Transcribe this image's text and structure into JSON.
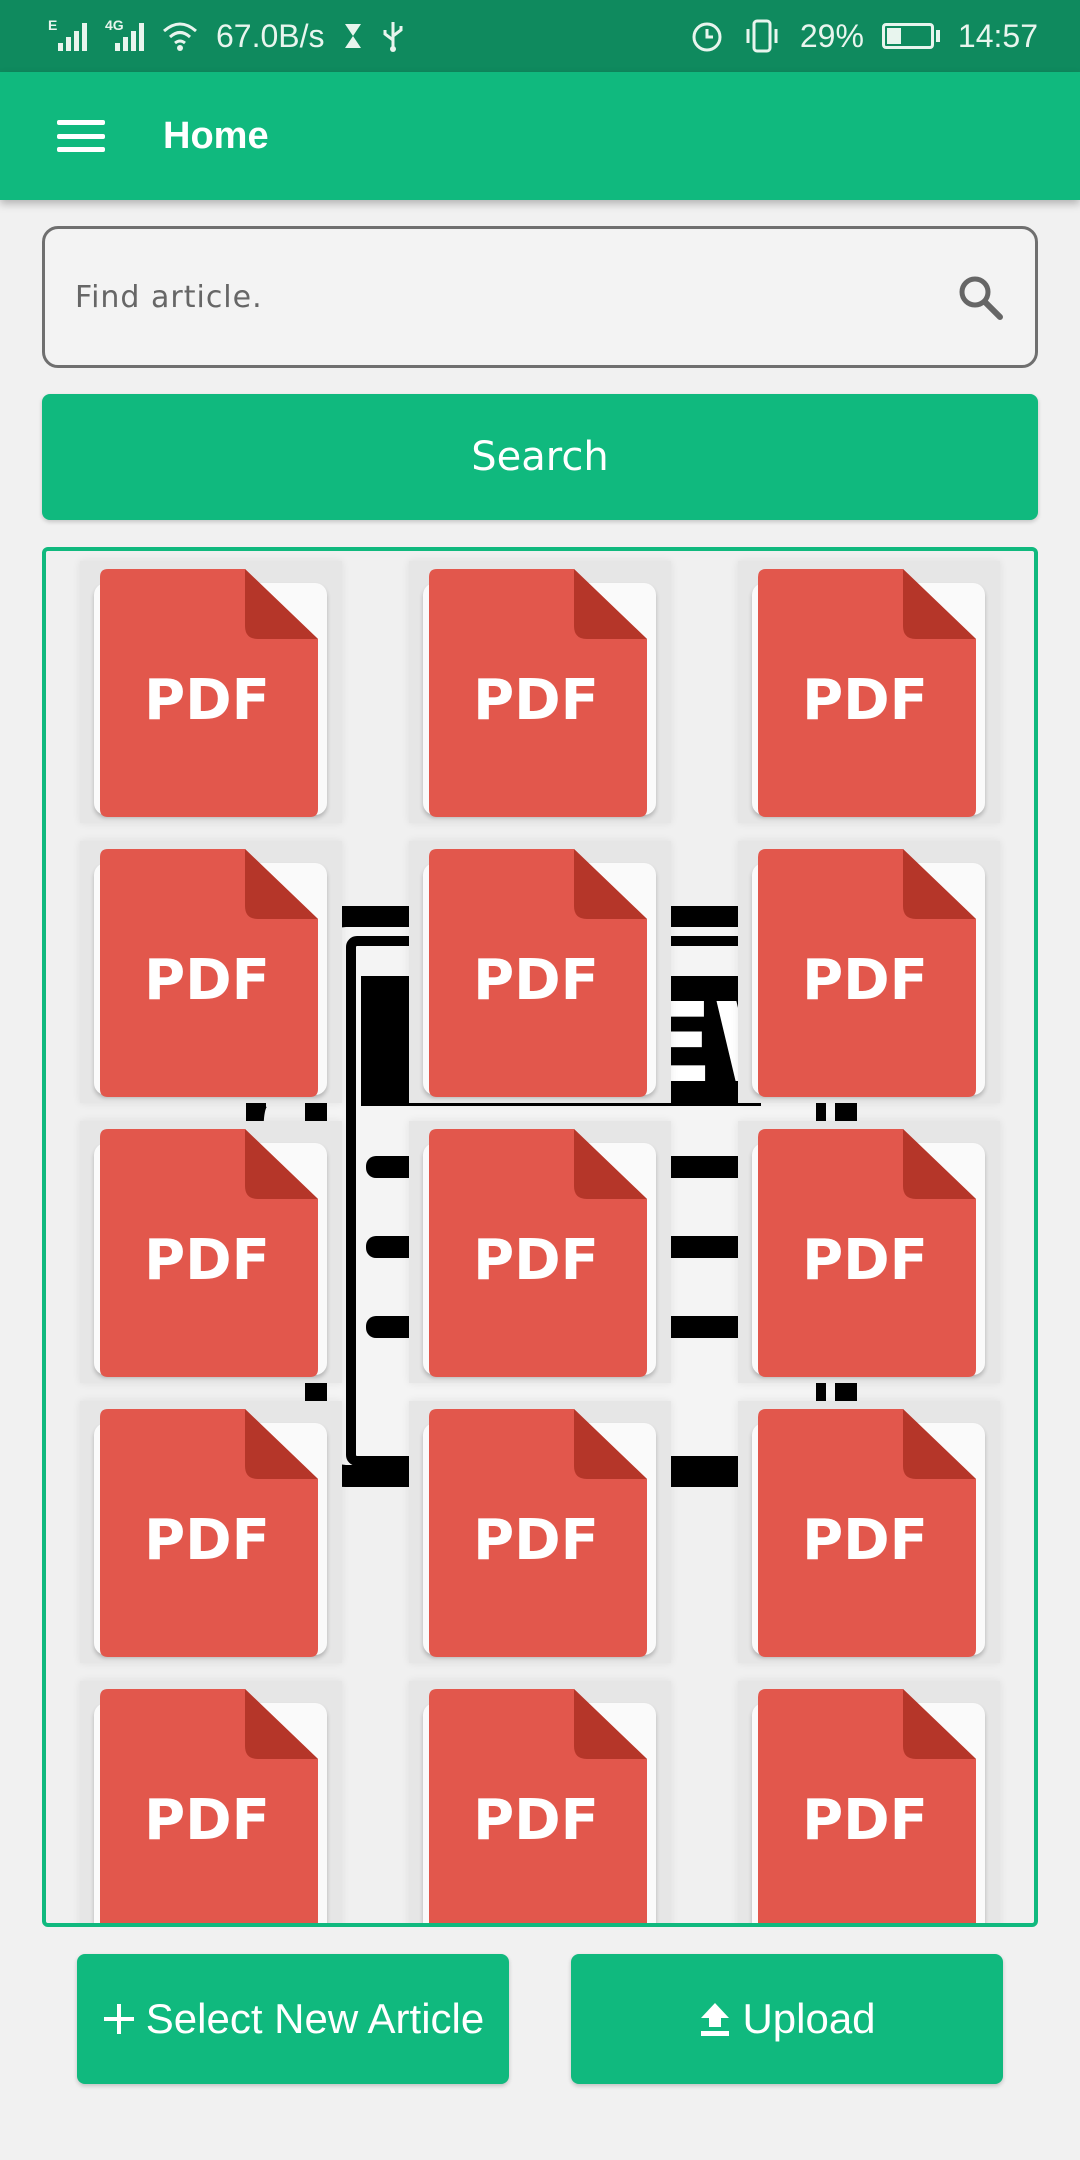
{
  "status_bar": {
    "network_speed": "67.0B/s",
    "battery_percent": "29%",
    "time": "14:57",
    "sim1_label": "E",
    "sim2_label": "4G",
    "icons": [
      "signal-icon",
      "wifi-icon",
      "hourglass-icon",
      "usb-icon",
      "alarm-icon",
      "vibrate-icon",
      "battery-icon"
    ]
  },
  "app_bar": {
    "title": "Home"
  },
  "search": {
    "placeholder": "Find article."
  },
  "search_button": {
    "label": "Search"
  },
  "articles": {
    "background_label": "NEWS",
    "items": [
      {
        "label": "PDF"
      },
      {
        "label": "PDF"
      },
      {
        "label": "PDF"
      },
      {
        "label": "PDF"
      },
      {
        "label": "PDF"
      },
      {
        "label": "PDF"
      },
      {
        "label": "PDF"
      },
      {
        "label": "PDF"
      },
      {
        "label": "PDF"
      },
      {
        "label": "PDF"
      },
      {
        "label": "PDF"
      },
      {
        "label": "PDF"
      },
      {
        "label": "PDF"
      },
      {
        "label": "PDF"
      },
      {
        "label": "PDF"
      }
    ]
  },
  "actions": {
    "select_label": "Select New Article",
    "upload_label": "Upload"
  },
  "colors": {
    "primary": "#10b97e",
    "status_bar": "#0f8a5e",
    "pdf_red": "#e2574c",
    "pdf_fold": "#b53629"
  }
}
